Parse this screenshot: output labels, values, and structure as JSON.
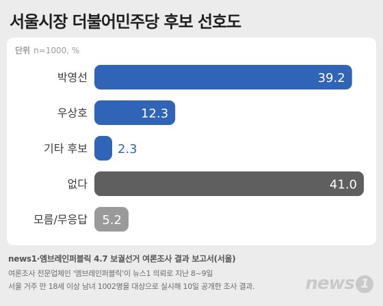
{
  "title": "서울시장 더불어민주당 후보 선호도",
  "unit": {
    "label": "단위",
    "value": "n=1000, %"
  },
  "chart_data": {
    "type": "bar",
    "orientation": "horizontal",
    "categories": [
      "박영선",
      "우상호",
      "기타 후보",
      "없다",
      "모름/무응답"
    ],
    "values": [
      39.2,
      12.3,
      2.3,
      41.0,
      5.2
    ],
    "value_labels": [
      "39.2",
      "12.3",
      "2.3",
      "41.0",
      "5.2"
    ],
    "bar_colors": [
      "#2f64b7",
      "#2f64b7",
      "#2f64b7",
      "#5f5f5f",
      "#9a9a9a"
    ],
    "label_inside": [
      true,
      true,
      false,
      true,
      true
    ],
    "xlim": [
      0,
      41.0
    ]
  },
  "source": "news1·엠브레인퍼블릭 4.7 보궐선거 여론조사 결과 보고서(서울)",
  "notes": [
    "여론조사 전문업체인 '엠브레인퍼블릭'이 뉴스1 의뢰로 지난 8~9일",
    "서울 거주 만 18세 이상 남녀 1002명을 대상으로 실시해 10일 공개한 조사 결과."
  ],
  "logo": {
    "text": "news",
    "mark": "1"
  }
}
